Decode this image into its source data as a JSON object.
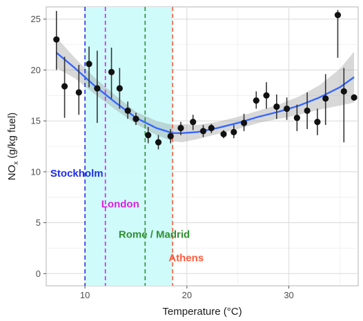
{
  "chart_data": {
    "type": "scatter",
    "xlabel": "Temperature (°C)",
    "ylabel": "NOx (g/kg fuel)",
    "ylabel_main": "NO",
    "ylabel_sub": "x",
    "ylabel_rest": " (g/kg fuel)",
    "xlim": [
      6.2,
      36.8
    ],
    "ylim": [
      -1.2,
      26.2
    ],
    "x_ticks": [
      10,
      20,
      30
    ],
    "y_ticks": [
      0,
      5,
      10,
      15,
      20,
      25
    ],
    "grid": true,
    "shaded_region": {
      "x_from": 10,
      "x_to": 18.6,
      "color": "#ccfbfb"
    },
    "points": [
      {
        "x": 7.2,
        "y": 23.0,
        "low": 20.0,
        "high": 25.8
      },
      {
        "x": 8.0,
        "y": 18.4,
        "low": 15.3,
        "high": 21.3
      },
      {
        "x": 9.4,
        "y": 17.8,
        "low": 15.6,
        "high": 20.5
      },
      {
        "x": 10.4,
        "y": 20.6,
        "low": 18.3,
        "high": 22.3
      },
      {
        "x": 11.2,
        "y": 18.2,
        "low": 14.8,
        "high": 21.9
      },
      {
        "x": 12.6,
        "y": 19.8,
        "low": 17.2,
        "high": 22.2
      },
      {
        "x": 13.4,
        "y": 18.2,
        "low": 16.2,
        "high": 20.2
      },
      {
        "x": 14.2,
        "y": 16.0,
        "low": 15.2,
        "high": 16.9
      },
      {
        "x": 15.0,
        "y": 15.2,
        "low": 14.6,
        "high": 15.8
      },
      {
        "x": 16.2,
        "y": 13.6,
        "low": 12.8,
        "high": 14.4
      },
      {
        "x": 17.2,
        "y": 12.9,
        "low": 12.2,
        "high": 13.6
      },
      {
        "x": 18.4,
        "y": 13.5,
        "low": 12.8,
        "high": 14.2
      },
      {
        "x": 19.4,
        "y": 14.3,
        "low": 13.6,
        "high": 14.9
      },
      {
        "x": 20.6,
        "y": 14.9,
        "low": 14.1,
        "high": 15.6
      },
      {
        "x": 21.6,
        "y": 14.0,
        "low": 13.4,
        "high": 14.6
      },
      {
        "x": 22.4,
        "y": 14.3,
        "low": 13.8,
        "high": 14.7
      },
      {
        "x": 23.6,
        "y": 13.7,
        "low": 13.3,
        "high": 14.1
      },
      {
        "x": 24.6,
        "y": 13.9,
        "low": 13.3,
        "high": 14.6
      },
      {
        "x": 25.6,
        "y": 14.8,
        "low": 14.0,
        "high": 15.7
      },
      {
        "x": 26.8,
        "y": 17.0,
        "low": 16.2,
        "high": 17.9
      },
      {
        "x": 27.8,
        "y": 17.5,
        "low": 16.2,
        "high": 18.8
      },
      {
        "x": 28.8,
        "y": 16.4,
        "low": 15.2,
        "high": 17.6
      },
      {
        "x": 29.8,
        "y": 16.2,
        "low": 15.1,
        "high": 17.3
      },
      {
        "x": 30.8,
        "y": 15.3,
        "low": 14.0,
        "high": 16.6
      },
      {
        "x": 31.8,
        "y": 16.0,
        "low": 14.2,
        "high": 17.8
      },
      {
        "x": 32.8,
        "y": 14.9,
        "low": 13.6,
        "high": 16.2
      },
      {
        "x": 33.6,
        "y": 17.2,
        "low": 14.6,
        "high": 19.6
      },
      {
        "x": 34.8,
        "y": 25.4,
        "low": 21.2,
        "high": 25.9
      },
      {
        "x": 35.4,
        "y": 17.9,
        "low": 12.9,
        "high": 20.2
      },
      {
        "x": 36.4,
        "y": 17.3,
        "low": 17.0,
        "high": 17.6
      }
    ],
    "fit_line": {
      "color": "#3366ff",
      "x": [
        7.2,
        9,
        11,
        13,
        15,
        17,
        18.6,
        19.5,
        21,
        23,
        25,
        27,
        29,
        31,
        33,
        35,
        36.4
      ],
      "y": [
        21.7,
        20.2,
        18.4,
        16.8,
        15.3,
        14.3,
        13.8,
        13.8,
        13.9,
        14.3,
        14.8,
        15.4,
        15.9,
        16.5,
        17.3,
        18.3,
        19.3
      ],
      "band_low": [
        20.2,
        19.2,
        17.6,
        16.1,
        14.7,
        13.6,
        13.0,
        12.9,
        13.2,
        13.7,
        14.2,
        14.8,
        15.2,
        15.6,
        16.1,
        16.5,
        16.8
      ],
      "band_high": [
        23.2,
        21.2,
        19.2,
        17.5,
        15.9,
        15.0,
        14.6,
        14.7,
        14.6,
        14.9,
        15.4,
        16.0,
        16.6,
        17.4,
        18.5,
        20.1,
        21.8
      ]
    },
    "cities": [
      {
        "name": "Stockholm",
        "x": 10.0,
        "label_y": 9.5,
        "label_x": 6.6,
        "color": "#1f2fe8"
      },
      {
        "name": "London",
        "x": 12.0,
        "label_y": 6.5,
        "label_x": 11.6,
        "color": "#e31ae3"
      },
      {
        "name": "Rome / Madrid",
        "x": 15.9,
        "label_y": 3.5,
        "label_x": 13.3,
        "color": "#2f8f2f"
      },
      {
        "name": "Athens",
        "x": 18.6,
        "label_y": 1.2,
        "label_x": 18.2,
        "color": "#ff5a3c"
      }
    ]
  }
}
